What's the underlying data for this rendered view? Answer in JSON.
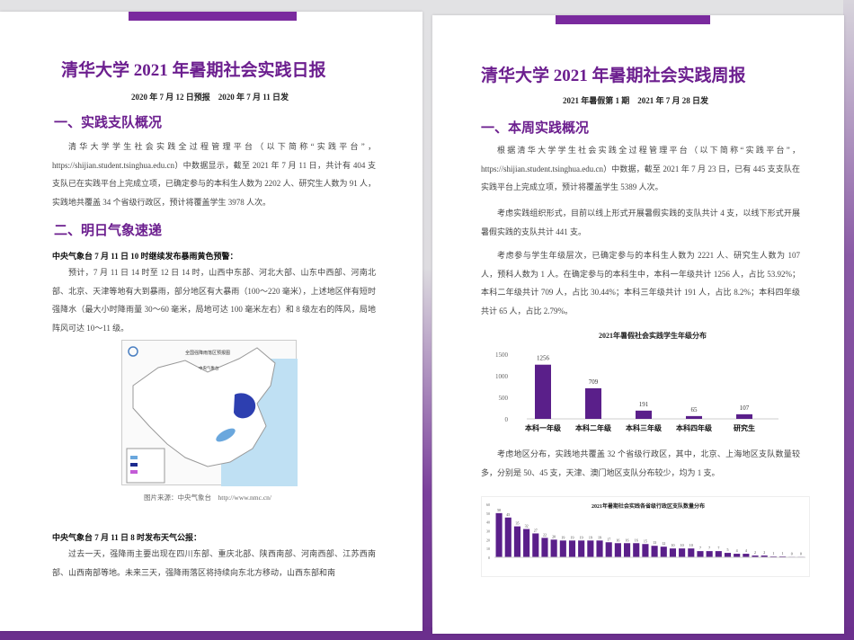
{
  "left_page": {
    "title": "清华大学 2021 年暑期社会实践日报",
    "subtitle": "2020 年 7 月 12 日预报　2020 年 7 月 11 日发",
    "section1": {
      "heading": "一、实践支队概况",
      "paragraph": "清华大学学生社会实践全过程管理平台（以下简称“实践平台”，https://shijian.student.tsinghua.edu.cn）中数据显示，截至 2021 年 7 月 11 日，共计有 404 支支队已在实践平台上完成立项，已确定参与的本科生人数为 2202 人、研究生人数为 91 人，实践地共覆盖 34 个省级行政区，预计将覆盖学生 3978 人次。"
    },
    "section2": {
      "heading": "二、明日气象速递",
      "alert1_title": "中央气象台 7 月 11 日 10 时继续发布暴雨黄色预警：",
      "alert1_text": "预计，7 月 11 日 14 时至 12 日 14 时，山西中东部、河北大部、山东中西部、河南北部、北京、天津等地有大到暴雨，部分地区有大暴雨（100～220 毫米），上述地区伴有短时强降水（最大小时降雨量 30～60 毫米，局地可达 100 毫米左右）和 8 级左右的阵风，局地阵风可达 10～11 级。",
      "map_title": "全国强降雨落区预报图",
      "map_org": "中央气象台",
      "map_caption": "图片来源：中央气象台　http://www.nmc.cn/",
      "alert2_title": "中央气象台 7 月 11 日 8 时发布天气公报：",
      "alert2_text": "过去一天，强降雨主要出现在四川东部、重庆北部、陕西南部、河南西部、江苏西南部、山西南部等地。未来三天，强降雨落区将持续向东北方移动，山西东部和南"
    }
  },
  "right_page": {
    "title": "清华大学 2021 年暑期社会实践周报",
    "subtitle": "2021 年暑假第 1 期　2021 年 7 月 28 日发",
    "section1": {
      "heading": "一、本周实践概况",
      "p1": "根据清华大学学生社会实践全过程管理平台（以下简称“实践平台”，https://shijian.student.tsinghua.edu.cn）中数据，截至 2021 年 7 月 23 日，已有 445 支支队在实践平台上完成立项，预计将覆盖学生 5389 人次。",
      "p2": "考虑实践组织形式，目前以线上形式开展暑假实践的支队共计 4 支，以线下形式开展暑假实践的支队共计 441 支。",
      "p3": "考虑参与学生年级层次，已确定参与的本科生人数为 2221 人、研究生人数为 107 人，预科人数为 1 人。在确定参与的本科生中，本科一年级共计 1256 人，占比 53.92%；本科二年级共计 709 人，占比 30.44%；本科三年级共计 191 人，占比 8.2%；本科四年级共计 65 人，占比 2.79%。",
      "p4": "考虑地区分布，实践地共覆盖 32 个省级行政区，其中，北京、上海地区支队数量较多，分别是 50、45 支，天津、澳门地区支队分布较少，均为 1 支。"
    }
  },
  "colors": {
    "accent": "#6c1f8f",
    "bar": "#5a1f8a"
  },
  "chart_data": [
    {
      "type": "bar",
      "title": "2021年暑假社会实践学生年级分布",
      "categories": [
        "本科一年级",
        "本科二年级",
        "本科三年级",
        "本科四年级",
        "研究生"
      ],
      "values": [
        1256,
        709,
        191,
        65,
        107
      ],
      "yticks": [
        0,
        500,
        1000,
        1500
      ],
      "ylim": [
        0,
        1500
      ],
      "grid": false
    },
    {
      "type": "bar",
      "title": "2021年暑期社会实践各省级行政区支队数量分布",
      "values": [
        50,
        45,
        35,
        32,
        27,
        22,
        20,
        19,
        19,
        19,
        19,
        19,
        17,
        16,
        16,
        16,
        15,
        13,
        12,
        10,
        10,
        10,
        7,
        7,
        7,
        5,
        4,
        4,
        2,
        2,
        1,
        1,
        0,
        0
      ],
      "yticks": [
        0,
        10,
        20,
        30,
        40,
        50,
        60
      ],
      "ylim": [
        0,
        60
      ],
      "grid": false
    }
  ]
}
